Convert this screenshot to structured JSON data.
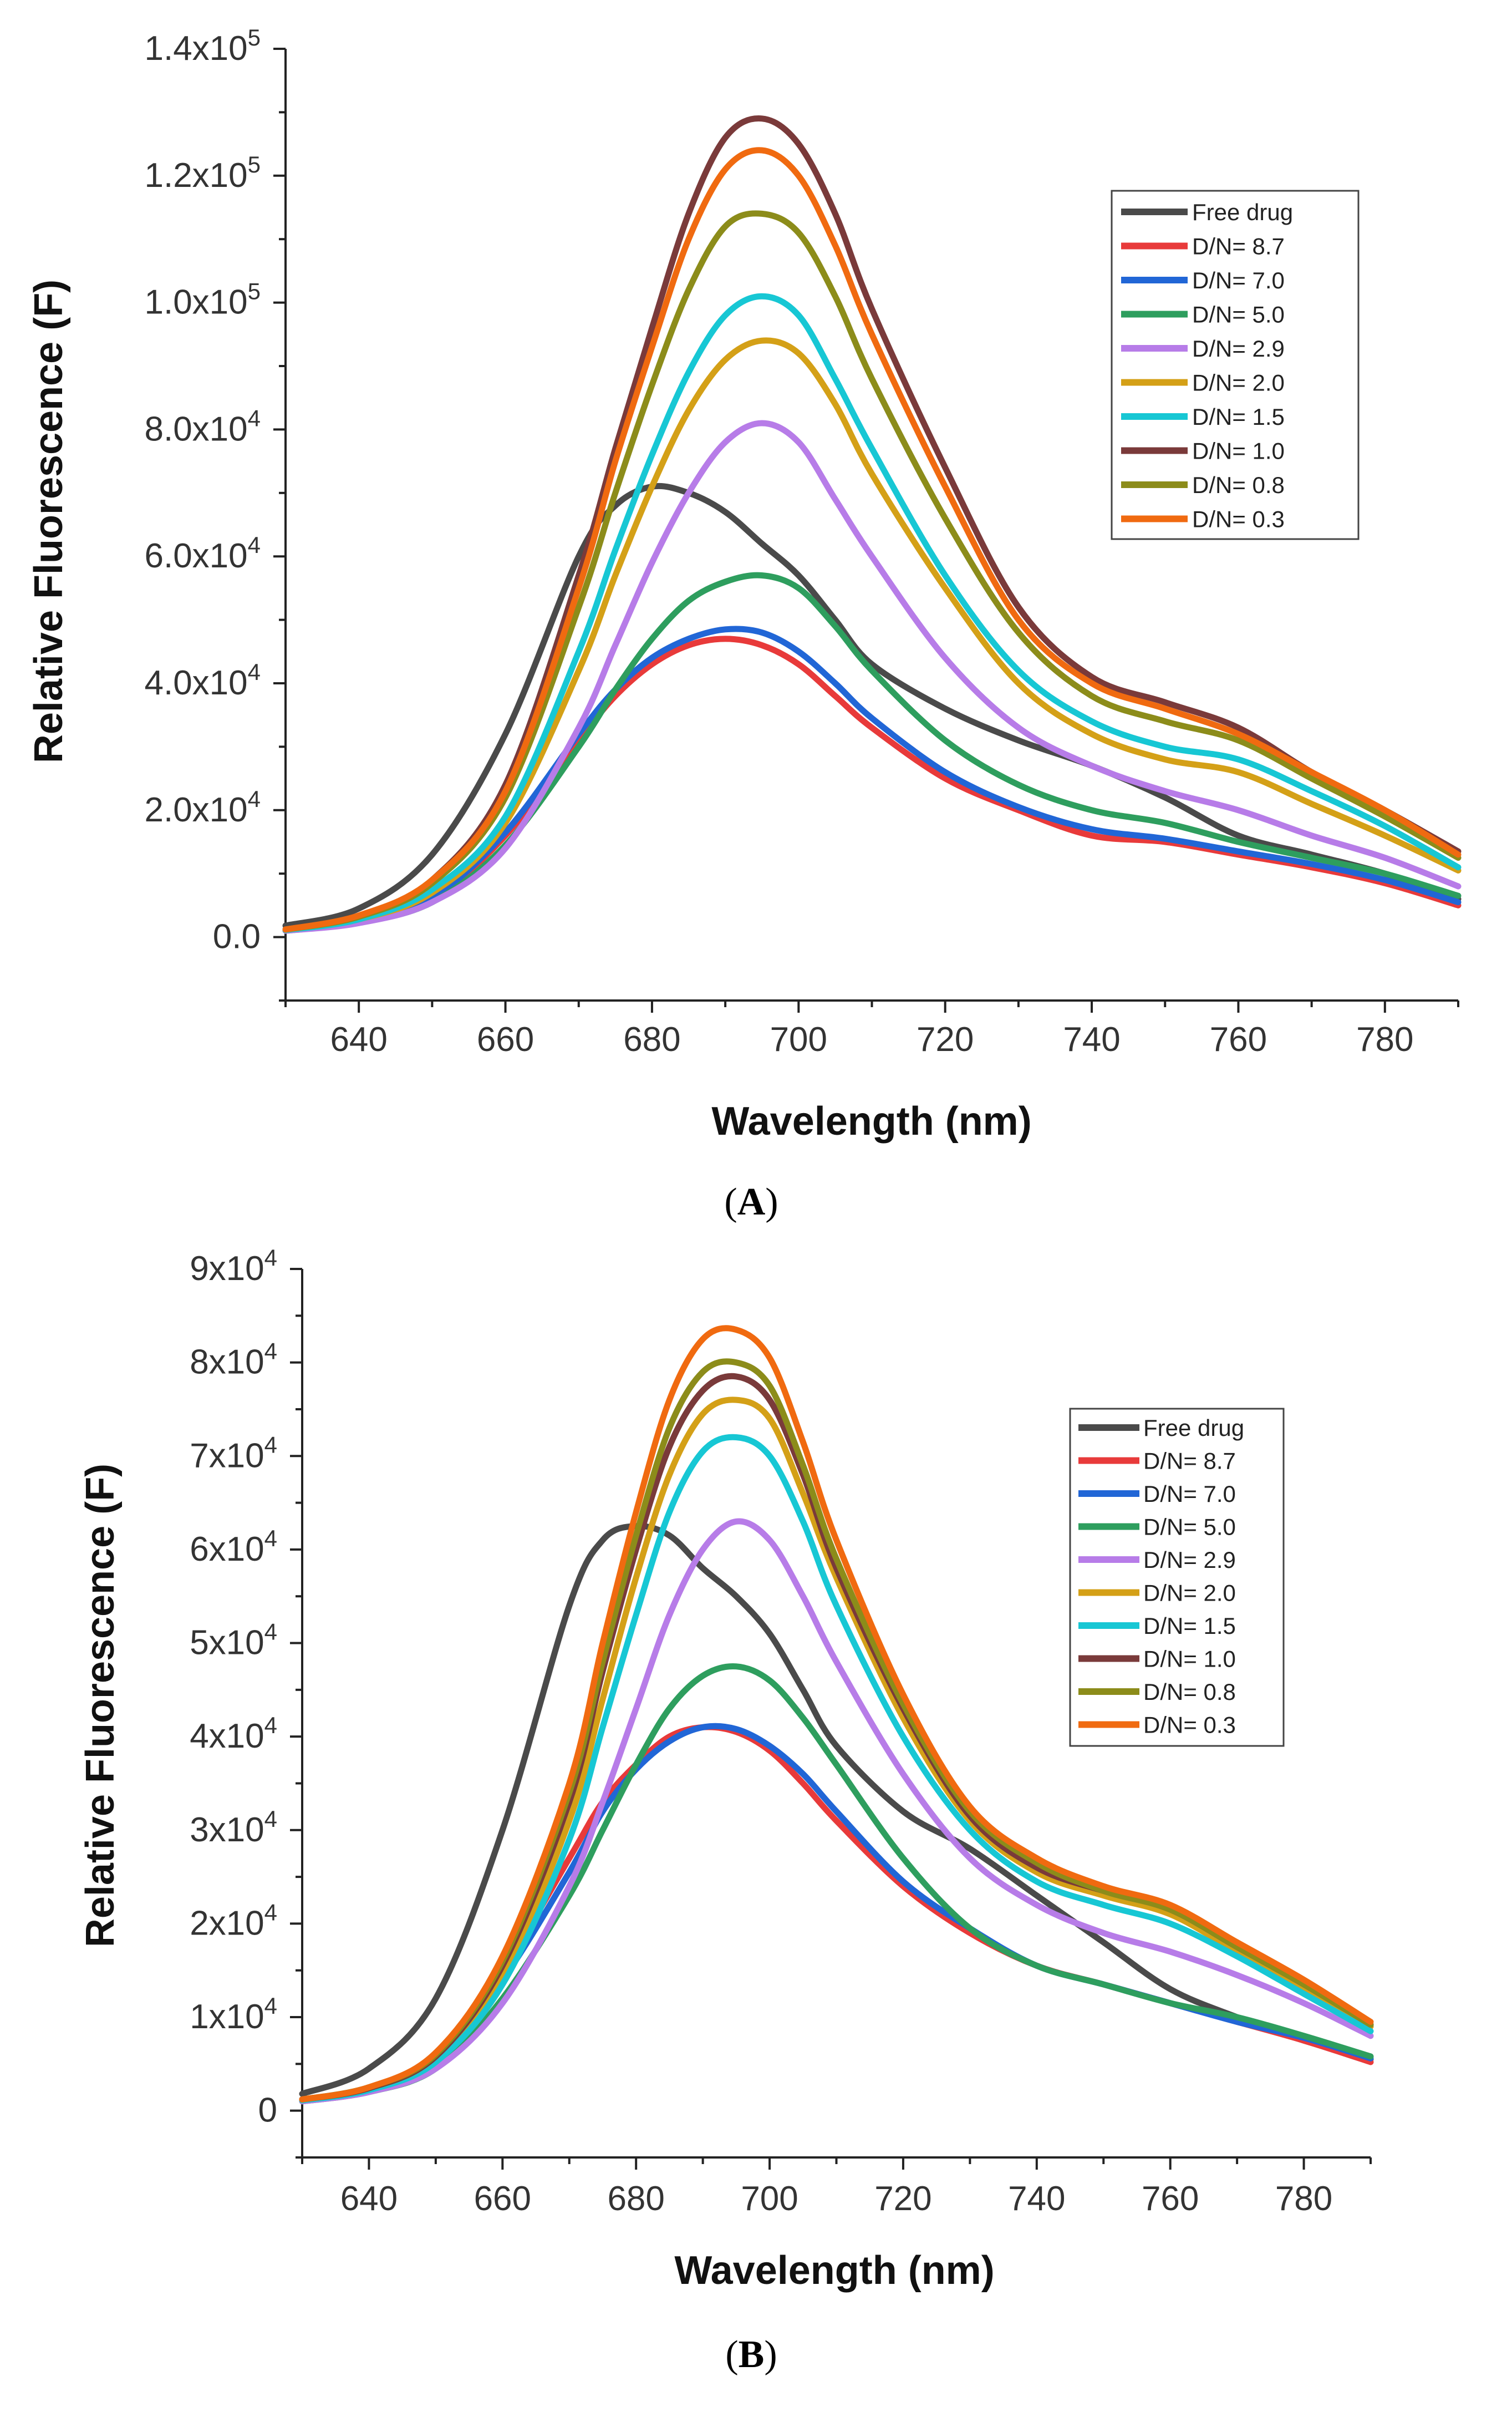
{
  "chart_data": [
    {
      "panel": "A",
      "caption": {
        "open": "(",
        "letter": "A",
        "close": ")"
      },
      "type": "line",
      "title": "",
      "xlabel": "Wavelength (nm)",
      "ylabel": "Relative Fluorescence (F)",
      "xlim": [
        630,
        790
      ],
      "ylim": [
        -10000,
        140000
      ],
      "xticks": [
        {
          "value": 640,
          "label": "640"
        },
        {
          "value": 660,
          "label": "660"
        },
        {
          "value": 680,
          "label": "680"
        },
        {
          "value": 700,
          "label": "700"
        },
        {
          "value": 720,
          "label": "720"
        },
        {
          "value": 740,
          "label": "740"
        },
        {
          "value": 760,
          "label": "760"
        },
        {
          "value": 780,
          "label": "780"
        }
      ],
      "yticks": [
        {
          "value": 0,
          "label": "0.0",
          "exp": ""
        },
        {
          "value": 20000,
          "label": "2.0x10",
          "exp": "4"
        },
        {
          "value": 40000,
          "label": "4.0x10",
          "exp": "4"
        },
        {
          "value": 60000,
          "label": "6.0x10",
          "exp": "4"
        },
        {
          "value": 80000,
          "label": "8.0x10",
          "exp": "4"
        },
        {
          "value": 100000,
          "label": "1.0x10",
          "exp": "5"
        },
        {
          "value": 120000,
          "label": "1.2x10",
          "exp": "5"
        },
        {
          "value": 140000,
          "label": "1.4x10",
          "exp": "5"
        }
      ],
      "legend_position": "top-right",
      "x": [
        630,
        640,
        650,
        660,
        670,
        675,
        680,
        685,
        690,
        695,
        700,
        705,
        710,
        720,
        730,
        740,
        750,
        760,
        770,
        780,
        790
      ],
      "series": [
        {
          "name": "Free drug",
          "color": "#4a4a4a",
          "values": [
            1800,
            4500,
            13000,
            32000,
            60000,
            68000,
            71000,
            70000,
            67000,
            62000,
            57000,
            50000,
            43000,
            36000,
            31000,
            27000,
            22000,
            16000,
            13000,
            10000,
            6000
          ]
        },
        {
          "name": "D/N= 8.7",
          "color": "#e83a3a",
          "values": [
            1200,
            2500,
            6000,
            16000,
            31000,
            38000,
            43000,
            46000,
            47000,
            46000,
            43000,
            38000,
            33000,
            25000,
            20000,
            16000,
            15000,
            13000,
            11000,
            8500,
            5000
          ]
        },
        {
          "name": "D/N= 7.0",
          "color": "#2166d6",
          "values": [
            1200,
            2600,
            6200,
            16500,
            32000,
            39000,
            44000,
            47000,
            48500,
            48000,
            45000,
            40000,
            34500,
            26000,
            20500,
            17000,
            15500,
            13500,
            11500,
            9000,
            5500
          ]
        },
        {
          "name": "D/N= 5.0",
          "color": "#2e9e5e",
          "values": [
            1000,
            2300,
            5500,
            14500,
            30000,
            39000,
            47000,
            53000,
            56000,
            57000,
            55000,
            49000,
            42000,
            31000,
            24000,
            20000,
            18000,
            15000,
            12500,
            10000,
            6500
          ]
        },
        {
          "name": "D/N= 2.9",
          "color": "#b77ce8",
          "values": [
            1000,
            2200,
            5500,
            14000,
            33000,
            46000,
            59000,
            70000,
            78000,
            81000,
            78000,
            69000,
            60000,
            44000,
            33000,
            27000,
            23000,
            20000,
            16000,
            12500,
            8000
          ]
        },
        {
          "name": "D/N= 2.0",
          "color": "#d4a017",
          "values": [
            1100,
            2800,
            7000,
            18000,
            42000,
            57000,
            71000,
            83000,
            91000,
            94000,
            92000,
            84000,
            73000,
            55000,
            40000,
            32000,
            28000,
            26000,
            21000,
            16000,
            10500
          ]
        },
        {
          "name": "D/N= 1.5",
          "color": "#17c7d4",
          "values": [
            1100,
            2800,
            7500,
            19000,
            45000,
            61000,
            76000,
            89000,
            98000,
            101000,
            98000,
            88000,
            77000,
            57000,
            42000,
            34000,
            30000,
            28000,
            23000,
            17500,
            11000
          ]
        },
        {
          "name": "D/N= 1.0",
          "color": "#7a3a3a",
          "values": [
            1200,
            3300,
            9000,
            24000,
            57000,
            77000,
            96000,
            114000,
            126000,
            129000,
            125000,
            114000,
            99000,
            74000,
            52000,
            41000,
            37000,
            33000,
            26000,
            20000,
            13500
          ]
        },
        {
          "name": "D/N= 0.8",
          "color": "#8c8c1a",
          "values": [
            1200,
            3200,
            8500,
            22000,
            52000,
            70000,
            87000,
            102000,
            112000,
            114000,
            111000,
            101000,
            88000,
            66000,
            48000,
            38000,
            34000,
            31000,
            25000,
            19000,
            12500
          ]
        },
        {
          "name": "D/N= 0.3",
          "color": "#f06a10",
          "values": [
            1200,
            3400,
            9000,
            23000,
            55000,
            75000,
            93000,
            110000,
            121000,
            124000,
            120000,
            109000,
            95000,
            71000,
            50000,
            40000,
            36000,
            32000,
            26000,
            20000,
            13000
          ]
        }
      ]
    },
    {
      "panel": "B",
      "caption": {
        "open": "(",
        "letter": "B",
        "close": ")"
      },
      "type": "line",
      "title": "",
      "xlabel": "Wavelength (nm)",
      "ylabel": "Relative Fluorescence (F)",
      "xlim": [
        630,
        790
      ],
      "ylim": [
        -5000,
        90000
      ],
      "xticks": [
        {
          "value": 640,
          "label": "640"
        },
        {
          "value": 660,
          "label": "660"
        },
        {
          "value": 680,
          "label": "680"
        },
        {
          "value": 700,
          "label": "700"
        },
        {
          "value": 720,
          "label": "720"
        },
        {
          "value": 740,
          "label": "740"
        },
        {
          "value": 760,
          "label": "760"
        },
        {
          "value": 780,
          "label": "780"
        }
      ],
      "yticks": [
        {
          "value": 0,
          "label": "0",
          "exp": ""
        },
        {
          "value": 10000,
          "label": "1x10",
          "exp": "4"
        },
        {
          "value": 20000,
          "label": "2x10",
          "exp": "4"
        },
        {
          "value": 30000,
          "label": "3x10",
          "exp": "4"
        },
        {
          "value": 40000,
          "label": "4x10",
          "exp": "4"
        },
        {
          "value": 50000,
          "label": "5x10",
          "exp": "4"
        },
        {
          "value": 60000,
          "label": "6x10",
          "exp": "4"
        },
        {
          "value": 70000,
          "label": "7x10",
          "exp": "4"
        },
        {
          "value": 80000,
          "label": "8x10",
          "exp": "4"
        },
        {
          "value": 90000,
          "label": "9x10",
          "exp": "4"
        }
      ],
      "legend_position": "top-right",
      "x": [
        630,
        640,
        650,
        660,
        670,
        675,
        680,
        685,
        690,
        695,
        700,
        705,
        710,
        720,
        730,
        740,
        750,
        760,
        770,
        780,
        790
      ],
      "series": [
        {
          "name": "Free drug",
          "color": "#4a4a4a",
          "values": [
            1800,
            4500,
            12000,
            30000,
            54000,
            61000,
            62500,
            61500,
            58000,
            55000,
            51000,
            45000,
            39000,
            32000,
            28000,
            23000,
            18000,
            13000,
            10000,
            7500,
            5500
          ]
        },
        {
          "name": "D/N= 8.7",
          "color": "#e83a3a",
          "values": [
            1200,
            2400,
            6000,
            15000,
            27000,
            33000,
            37000,
            40000,
            41000,
            40500,
            38500,
            35000,
            31000,
            24000,
            19000,
            15500,
            13500,
            11500,
            9500,
            7500,
            5200
          ]
        },
        {
          "name": "D/N= 7.0",
          "color": "#2166d6",
          "values": [
            1200,
            2300,
            5500,
            14000,
            25500,
            32000,
            36500,
            39500,
            41000,
            40800,
            39000,
            36000,
            32000,
            24500,
            19500,
            15500,
            13500,
            11500,
            9500,
            7800,
            5600
          ]
        },
        {
          "name": "D/N= 5.0",
          "color": "#2e9e5e",
          "values": [
            1000,
            2000,
            4500,
            12000,
            23000,
            30000,
            37000,
            43000,
            46500,
            47500,
            46000,
            42000,
            37000,
            27000,
            19500,
            15500,
            13500,
            11500,
            10000,
            8000,
            5800
          ]
        },
        {
          "name": "D/N= 2.9",
          "color": "#b77ce8",
          "values": [
            1000,
            2000,
            4500,
            11500,
            24000,
            33000,
            43000,
            53000,
            60000,
            63000,
            61000,
            55000,
            48000,
            36000,
            27000,
            22000,
            19000,
            17000,
            14500,
            11500,
            8000
          ]
        },
        {
          "name": "D/N= 2.0",
          "color": "#d4a017",
          "values": [
            1100,
            2300,
            5500,
            14500,
            31000,
            44000,
            57000,
            68000,
            74500,
            76000,
            74000,
            66000,
            57000,
            42000,
            31000,
            25500,
            23000,
            21000,
            17000,
            13000,
            9000
          ]
        },
        {
          "name": "D/N= 1.5",
          "color": "#17c7d4",
          "values": [
            1100,
            2200,
            5200,
            13500,
            29000,
            41000,
            53000,
            64000,
            70500,
            72000,
            70000,
            63000,
            54000,
            40000,
            30000,
            24500,
            22000,
            20000,
            16500,
            12500,
            8500
          ]
        },
        {
          "name": "D/N= 1.0",
          "color": "#7a3a3a",
          "values": [
            1200,
            2400,
            5800,
            15500,
            33000,
            47000,
            60000,
            71000,
            77000,
            78500,
            76000,
            68000,
            58000,
            43000,
            31500,
            26000,
            23500,
            21500,
            17500,
            13500,
            9200
          ]
        },
        {
          "name": "D/N= 0.8",
          "color": "#8c8c1a",
          "values": [
            1200,
            2500,
            6000,
            16000,
            34000,
            48000,
            61500,
            73000,
            79000,
            80000,
            77500,
            69000,
            59000,
            43500,
            32000,
            26500,
            23500,
            21500,
            17500,
            13500,
            9200
          ]
        },
        {
          "name": "D/N= 0.3",
          "color": "#f06a10",
          "values": [
            1200,
            2500,
            6200,
            16500,
            35000,
            50000,
            64000,
            76000,
            82500,
            83500,
            80500,
            71500,
            61000,
            44500,
            32500,
            27000,
            24000,
            22000,
            18000,
            14000,
            9500
          ]
        }
      ]
    }
  ]
}
